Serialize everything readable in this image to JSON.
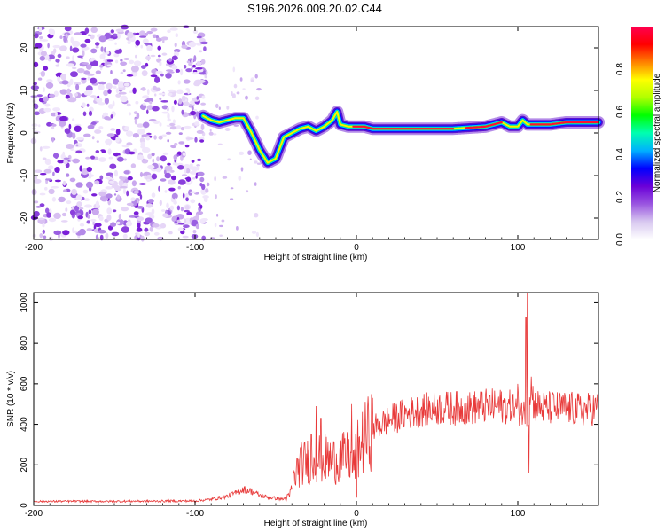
{
  "title": "S196.2026.009.20.02.C44",
  "chart_data": [
    {
      "type": "heatmap",
      "title": "S196.2026.009.20.02.C44",
      "xlabel": "Height of straight line (km)",
      "ylabel": "Frequency (Hz)",
      "xlim": [
        -200,
        150
      ],
      "ylim": [
        -25,
        25
      ],
      "xticks": [
        -200,
        -100,
        0,
        100
      ],
      "xtick_labels": [
        "-200",
        "-100",
        "0",
        "100"
      ],
      "yticks": [
        -20,
        -10,
        0,
        10,
        20
      ],
      "ytick_labels": [
        "-20",
        "-10",
        "0",
        "10",
        "20"
      ],
      "noise_region_km": [
        -200,
        -95
      ],
      "ridge": {
        "x": [
          -95,
          -90,
          -85,
          -80,
          -75,
          -70,
          -65,
          -60,
          -55,
          -50,
          -45,
          -40,
          -35,
          -30,
          -25,
          -20,
          -15,
          -12,
          -10,
          -5,
          0,
          5,
          10,
          20,
          40,
          60,
          80,
          90,
          95,
          100,
          103,
          106,
          110,
          120,
          130,
          140,
          150
        ],
        "y": [
          4,
          3,
          2.5,
          3,
          3.5,
          3.5,
          0,
          -4,
          -7,
          -6,
          -1,
          0,
          1,
          1.5,
          0.5,
          1.5,
          3,
          5,
          2,
          1.5,
          1.5,
          1.5,
          1,
          1,
          1,
          1,
          1.5,
          2.5,
          1.5,
          1.5,
          3,
          2,
          2,
          2,
          2.5,
          2.5,
          2.5
        ]
      },
      "colorbar": {
        "label": "Normalized spectral amplitude",
        "range": [
          0.0,
          1.0
        ],
        "ticks": [
          0.0,
          0.2,
          0.4,
          0.6,
          0.8
        ],
        "tick_labels": [
          "0.0",
          "0.2",
          "0.4",
          "0.6",
          "0.8"
        ],
        "colors": [
          "#ffffff",
          "#d8c8f0",
          "#9a55e0",
          "#6a00d8",
          "#0000ff",
          "#00b0ff",
          "#00ffb0",
          "#00ff00",
          "#b0ff00",
          "#ffff00",
          "#ff8000",
          "#ff0000",
          "#ff0050"
        ]
      }
    },
    {
      "type": "line",
      "xlabel": "Height of straight line (km)",
      "ylabel": "SNR (10 * v/v)",
      "xlim": [
        -200,
        150
      ],
      "ylim": [
        0,
        1050
      ],
      "xticks": [
        -200,
        -100,
        0,
        100
      ],
      "xtick_labels": [
        "-200",
        "-100",
        "0",
        "100"
      ],
      "yticks": [
        0,
        200,
        400,
        600,
        800,
        1000
      ],
      "ytick_labels": [
        "0",
        "200",
        "400",
        "600",
        "800",
        "1000"
      ],
      "series": [
        {
          "name": "SNR",
          "color": "#e83a3a",
          "envelope": {
            "x": [
              -200,
              -150,
              -100,
              -90,
              -80,
              -75,
              -70,
              -65,
              -60,
              -55,
              -50,
              -45,
              -42,
              -40,
              -38,
              -35,
              -30,
              -25,
              -20,
              -15,
              -10,
              -5,
              -2,
              0,
              5,
              10,
              20,
              30,
              40,
              50,
              60,
              70,
              80,
              90,
              100,
              103,
              105,
              106,
              107,
              108,
              110,
              115,
              120,
              130,
              140,
              150
            ],
            "y": [
              20,
              20,
              22,
              30,
              45,
              60,
              80,
              70,
              50,
              40,
              35,
              30,
              40,
              80,
              150,
              200,
              220,
              240,
              230,
              220,
              230,
              240,
              180,
              260,
              330,
              380,
              420,
              450,
              470,
              480,
              480,
              480,
              490,
              490,
              480,
              470,
              420,
              380,
              550,
              600,
              500,
              480,
              480,
              480,
              470,
              480
            ]
          },
          "spikes": [
            {
              "x": -28,
              "y": 350
            },
            {
              "x": -25,
              "y": 490
            },
            {
              "x": -22,
              "y": 430
            },
            {
              "x": -3,
              "y": 500
            },
            {
              "x": 0,
              "y": 40
            },
            {
              "x": 100,
              "y": 600
            },
            {
              "x": 105,
              "y": 930
            },
            {
              "x": 106,
              "y": 1050
            },
            {
              "x": 107,
              "y": 160
            }
          ]
        }
      ]
    }
  ]
}
